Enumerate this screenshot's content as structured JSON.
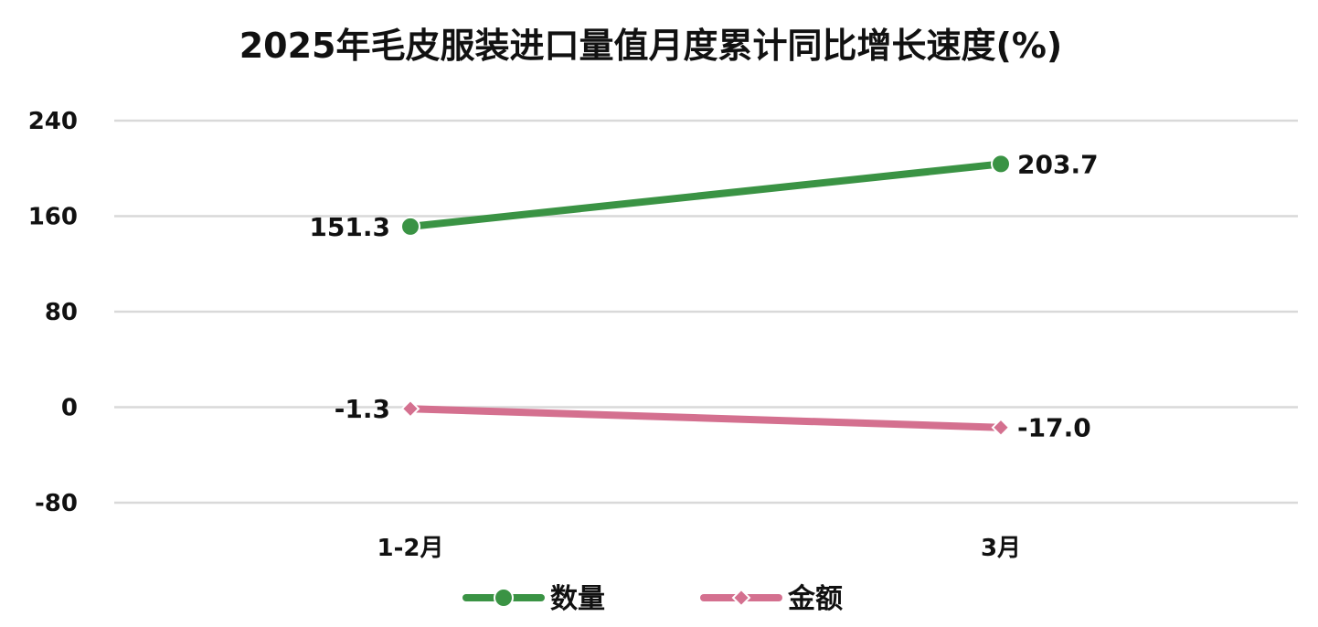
{
  "chart_data": {
    "type": "line",
    "title": "2025年毛皮服装进口量值月度累计同比增长速度(%)",
    "categories": [
      "1-2月",
      "3月"
    ],
    "series": [
      {
        "name": "数量",
        "values": [
          151.3,
          203.7
        ],
        "labels": [
          "151.3",
          "203.7"
        ],
        "color": "#3a9344",
        "marker": "circle"
      },
      {
        "name": "金额",
        "values": [
          -1.3,
          -17.0
        ],
        "labels": [
          "-1.3",
          "-17.0"
        ],
        "color": "#d4708f",
        "marker": "diamond"
      }
    ],
    "ylim": [
      -80,
      240
    ],
    "yticks": [
      240,
      160,
      80,
      0,
      -80
    ],
    "ytick_labels": [
      "240",
      "160",
      "80",
      "0",
      "-80"
    ],
    "grid": true,
    "legend_position": "bottom"
  }
}
